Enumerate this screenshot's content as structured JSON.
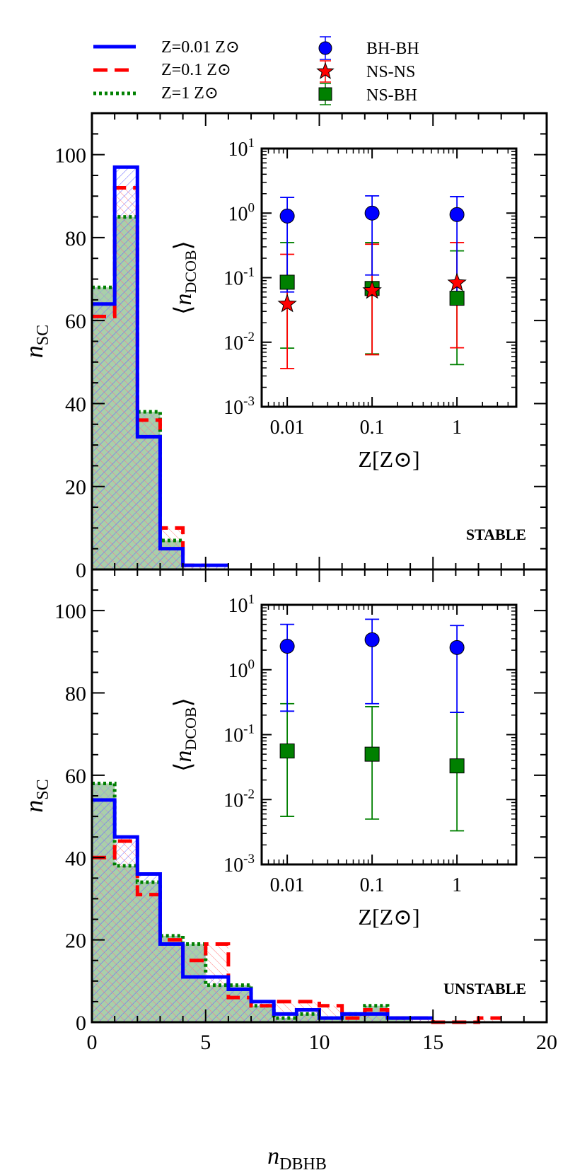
{
  "legend": {
    "lines": [
      {
        "label": "Z=0.01 Z⊙",
        "color": "#0000ff",
        "style": "solid"
      },
      {
        "label": "Z=0.1 Z⊙",
        "color": "#ff0000",
        "style": "dashed"
      },
      {
        "label": "Z=1 Z⊙",
        "color": "#008000",
        "style": "dotted"
      }
    ],
    "markers": [
      {
        "label": "BH-BH",
        "color": "#0000ff",
        "marker": "circle"
      },
      {
        "label": "NS-NS",
        "color": "#ff0000",
        "marker": "star"
      },
      {
        "label": "NS-BH",
        "color": "#008000",
        "marker": "square"
      }
    ]
  },
  "colors": {
    "blue": "#0000ff",
    "red": "#ff0000",
    "green": "#008000",
    "fill_green": "#a9cfa9",
    "hatch_purple": "#c080d8"
  },
  "chart_data": [
    {
      "type": "histogram",
      "panel_label": "STABLE",
      "xlabel": "",
      "ylabel": "n_SC",
      "xlim": [
        0,
        20
      ],
      "ylim": [
        0,
        110
      ],
      "yticks": [
        0,
        20,
        40,
        60,
        80,
        100
      ],
      "bin_edges": [
        0,
        1,
        2,
        3,
        4,
        5,
        6,
        7,
        8,
        9,
        10,
        11,
        12,
        13,
        14,
        15,
        16,
        17,
        18,
        19,
        20
      ],
      "series": [
        {
          "name": "Z=0.01 Z⊙",
          "values": [
            64,
            97,
            32,
            5,
            1,
            1,
            0,
            0,
            0,
            0,
            0,
            0,
            0,
            0,
            0,
            0,
            0,
            0,
            0,
            0
          ]
        },
        {
          "name": "Z=0.1 Z⊙",
          "values": [
            61,
            92,
            36,
            10,
            1,
            0,
            0,
            0,
            0,
            0,
            0,
            0,
            0,
            0,
            0,
            0,
            0,
            0,
            0,
            0
          ]
        },
        {
          "name": "Z=1 Z⊙",
          "values": [
            68,
            85,
            38,
            7,
            0,
            0,
            0,
            0,
            0,
            0,
            0,
            0,
            0,
            0,
            0,
            0,
            0,
            0,
            0,
            0
          ]
        }
      ],
      "inset": {
        "type": "scatter",
        "ylabel": "⟨n_DCOB⟩",
        "xlabel": "Z[Z⊙]",
        "xscale": "log",
        "yscale": "log",
        "xlim": [
          0.005,
          5
        ],
        "ylim": [
          0.001,
          10
        ],
        "xticks": [
          "0.01",
          "0.1",
          "1"
        ],
        "yticks": [
          "10^-3",
          "10^-2",
          "10^-1",
          "10^0",
          "10^1"
        ],
        "x": [
          0.01,
          0.1,
          1
        ],
        "series": [
          {
            "name": "BH-BH",
            "values": [
              0.9,
              1.0,
              0.95
            ],
            "err_low": [
              0.06,
              0.11,
              0.06
            ],
            "err_high": [
              1.75,
              1.85,
              1.8
            ]
          },
          {
            "name": "NS-NS",
            "values": [
              0.039,
              0.063,
              0.083
            ],
            "err_low": [
              0.0039,
              0.0064,
              0.0082
            ],
            "err_high": [
              0.23,
              0.33,
              0.35
            ]
          },
          {
            "name": "NS-BH",
            "values": [
              0.085,
              0.068,
              0.048
            ],
            "err_low": [
              0.0081,
              0.0066,
              0.0045
            ],
            "err_high": [
              0.35,
              0.35,
              0.26
            ]
          }
        ]
      }
    },
    {
      "type": "histogram",
      "panel_label": "UNSTABLE",
      "xlabel": "n_DBHB",
      "ylabel": "n_SC",
      "xlim": [
        0,
        20
      ],
      "ylim": [
        0,
        110
      ],
      "xticks": [
        0,
        5,
        10,
        15,
        20
      ],
      "yticks": [
        0,
        20,
        40,
        60,
        80,
        100
      ],
      "bin_edges": [
        0,
        1,
        2,
        3,
        4,
        5,
        6,
        7,
        8,
        9,
        10,
        11,
        12,
        13,
        14,
        15,
        16,
        17,
        18,
        19,
        20
      ],
      "series": [
        {
          "name": "Z=0.01 Z⊙",
          "values": [
            54,
            45,
            36,
            19,
            11,
            11,
            8,
            5,
            2,
            3,
            1,
            2,
            2,
            1,
            1,
            0,
            0,
            0,
            0,
            0
          ]
        },
        {
          "name": "Z=0.1 Z⊙",
          "values": [
            40,
            44,
            31,
            20,
            15,
            19,
            6,
            4,
            5,
            5,
            4,
            1,
            3,
            1,
            1,
            0,
            0,
            1,
            0,
            0
          ]
        },
        {
          "name": "Z=1 Z⊙",
          "values": [
            58,
            38,
            34,
            21,
            19,
            9,
            9,
            4,
            1,
            2,
            1,
            2,
            4,
            1,
            0,
            0,
            0,
            0,
            0,
            0
          ]
        }
      ],
      "inset": {
        "type": "scatter",
        "ylabel": "⟨n_DCOB⟩",
        "xlabel": "Z[Z⊙]",
        "xscale": "log",
        "yscale": "log",
        "xlim": [
          0.005,
          5
        ],
        "ylim": [
          0.001,
          10
        ],
        "xticks": [
          "0.01",
          "0.1",
          "1"
        ],
        "yticks": [
          "10^-3",
          "10^-2",
          "10^-1",
          "10^0",
          "10^1"
        ],
        "x": [
          0.01,
          0.1,
          1
        ],
        "series": [
          {
            "name": "BH-BH",
            "values": [
              2.3,
              2.9,
              2.2
            ],
            "err_low": [
              0.23,
              0.3,
              0.22
            ],
            "err_high": [
              5.0,
              6.0,
              4.8
            ]
          },
          {
            "name": "NS-BH",
            "values": [
              0.056,
              0.05,
              0.033
            ],
            "err_low": [
              0.0055,
              0.005,
              0.0033
            ],
            "err_high": [
              0.3,
              0.27,
              0.22
            ]
          }
        ]
      }
    }
  ]
}
